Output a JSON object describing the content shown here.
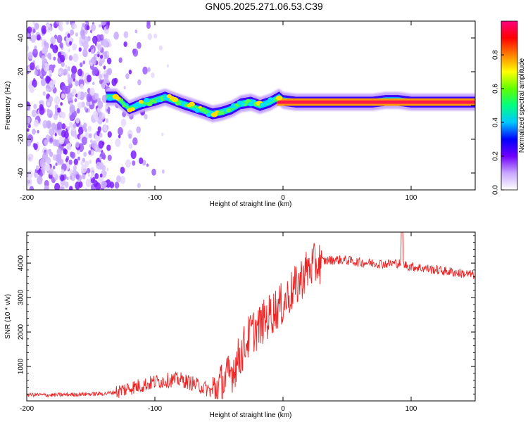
{
  "title": "GN05.2025.271.06.53.C39",
  "chart_data": [
    {
      "type": "heatmap",
      "xlabel": "Height of straight line (km)",
      "ylabel": "Frequency (Hz)",
      "xlim": [
        -200,
        150
      ],
      "ylim": [
        -50,
        50
      ],
      "xticks": [
        -200,
        -100,
        0,
        100
      ],
      "yticks": [
        -40,
        -20,
        0,
        20,
        40
      ],
      "colorbar": {
        "label": "Normalized spectral amplitude",
        "range": [
          0,
          1
        ],
        "ticks": [
          0.0,
          0.2,
          0.4,
          0.6,
          0.8
        ],
        "tick_labels": [
          "0.0",
          "0.2",
          "0.4",
          "0.6",
          "0.8"
        ],
        "colors": [
          "#ffffff",
          "#c8a6ff",
          "#7000ff",
          "#0000ff",
          "#00c8ff",
          "#00ff80",
          "#60ff00",
          "#ffff00",
          "#ff8000",
          "#ff0000",
          "#ff007f"
        ]
      },
      "ridge": {
        "name": "Doppler ridge",
        "x": [
          -138,
          -130,
          -120,
          -110,
          -100,
          -92,
          -85,
          -78,
          -70,
          -62,
          -55,
          -48,
          -40,
          -33,
          -25,
          -18,
          -10,
          -3,
          0,
          10,
          30,
          50,
          70,
          80,
          90,
          100,
          150
        ],
        "y": [
          5,
          5,
          -2,
          1,
          3,
          5,
          3,
          1,
          -1,
          -3,
          -5,
          -4,
          -2,
          1,
          2,
          0,
          2,
          5,
          3,
          2,
          2,
          2,
          2,
          3,
          3,
          2,
          2
        ]
      },
      "noise_region": {
        "x_start": -200,
        "x_end": -135,
        "note": "broadband scattered energy"
      }
    },
    {
      "type": "line",
      "xlabel": "Height of straight line (km)",
      "ylabel": "SNR (10 * v/v)",
      "xlim": [
        -200,
        150
      ],
      "ylim": [
        0,
        4900
      ],
      "xticks": [
        -200,
        -100,
        0,
        100
      ],
      "yticks": [
        1000,
        2000,
        3000,
        4000
      ],
      "series": [
        {
          "name": "SNR",
          "color": "#ee2222",
          "x": [
            -200,
            -180,
            -160,
            -140,
            -130,
            -120,
            -110,
            -100,
            -90,
            -80,
            -70,
            -60,
            -55,
            -50,
            -45,
            -40,
            -35,
            -30,
            -25,
            -20,
            -15,
            -10,
            -5,
            0,
            5,
            10,
            15,
            20,
            25,
            30,
            40,
            50,
            60,
            70,
            80,
            90,
            95,
            100,
            110,
            120,
            130,
            140,
            150
          ],
          "y": [
            180,
            170,
            190,
            210,
            260,
            380,
            450,
            550,
            600,
            620,
            500,
            350,
            280,
            420,
            600,
            850,
            1200,
            1600,
            2000,
            2100,
            2300,
            2500,
            2700,
            2800,
            3100,
            3300,
            3600,
            3850,
            3950,
            4050,
            4100,
            4080,
            4020,
            4000,
            3980,
            4000,
            3950,
            3900,
            3850,
            3800,
            3750,
            3700,
            3650
          ]
        }
      ],
      "features": [
        {
          "x": 93,
          "y_min": 2600,
          "y_max": 4900,
          "label": "spike"
        }
      ]
    }
  ]
}
